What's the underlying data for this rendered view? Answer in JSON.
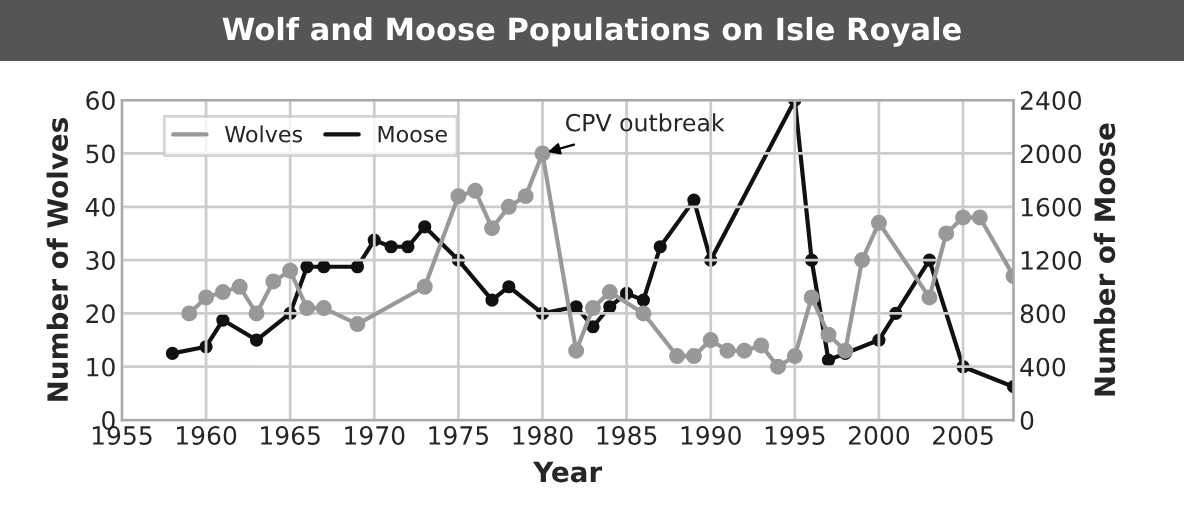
{
  "chart_data": {
    "type": "line",
    "title": "Wolf and Moose Populations on Isle Royale",
    "xlabel": "Year",
    "ylabel": "Number of Wolves",
    "y2label": "Number of Moose",
    "series": [
      {
        "name": "Wolves",
        "color": "#999999",
        "x": [
          1959,
          1960,
          1961,
          1962,
          1963,
          1964,
          1965,
          1966,
          1967,
          1969,
          1973,
          1975,
          1976,
          1977,
          1978,
          1979,
          1980,
          1982,
          1983,
          1984,
          1986,
          1988,
          1989,
          1990,
          1991,
          1992,
          1993,
          1994,
          1995,
          1996,
          1997,
          1998,
          1999,
          2000,
          2003,
          2004,
          2005,
          2006,
          2008
        ],
        "values": [
          20,
          23,
          24,
          25,
          20,
          26,
          28,
          21,
          21,
          18,
          25,
          42,
          43,
          36,
          40,
          42,
          50,
          13,
          21,
          24,
          20,
          12,
          12,
          15,
          13,
          13,
          14,
          10,
          12,
          23,
          16,
          13,
          30,
          37,
          23,
          35,
          38,
          38,
          27
        ]
      },
      {
        "name": "Moose",
        "color": "#111111",
        "axis": "y2",
        "x": [
          1958,
          1960,
          1961,
          1963,
          1965,
          1966,
          1967,
          1969,
          1970,
          1971,
          1972,
          1973,
          1975,
          1977,
          1978,
          1980,
          1982,
          1983,
          1984,
          1985,
          1986,
          1987,
          1989,
          1990,
          1995,
          1996,
          1997,
          1998,
          2000,
          2001,
          2003,
          2005,
          2008
        ],
        "values": [
          500,
          550,
          750,
          600,
          800,
          1150,
          1150,
          1150,
          1350,
          1300,
          1300,
          1450,
          1200,
          900,
          1000,
          800,
          850,
          700,
          850,
          950,
          900,
          1300,
          1650,
          1200,
          2400,
          1200,
          450,
          500,
          600,
          800,
          1200,
          400,
          250
        ]
      }
    ],
    "xlim": [
      1955,
      2008
    ],
    "xticks": [
      1955,
      1960,
      1965,
      1970,
      1975,
      1980,
      1985,
      1990,
      1995,
      2000,
      2005
    ],
    "ylim": [
      0,
      60
    ],
    "yticks": [
      0,
      10,
      20,
      30,
      40,
      50,
      60
    ],
    "y2lim": [
      0,
      2400
    ],
    "y2ticks": [
      0,
      400,
      800,
      1200,
      1600,
      2000,
      2400
    ],
    "annotations": [
      {
        "text": "CPV outbreak",
        "x": 1980,
        "y": 50
      }
    ],
    "grid": true,
    "legend": "top left",
    "marker": "circle",
    "line_style": "solid"
  }
}
